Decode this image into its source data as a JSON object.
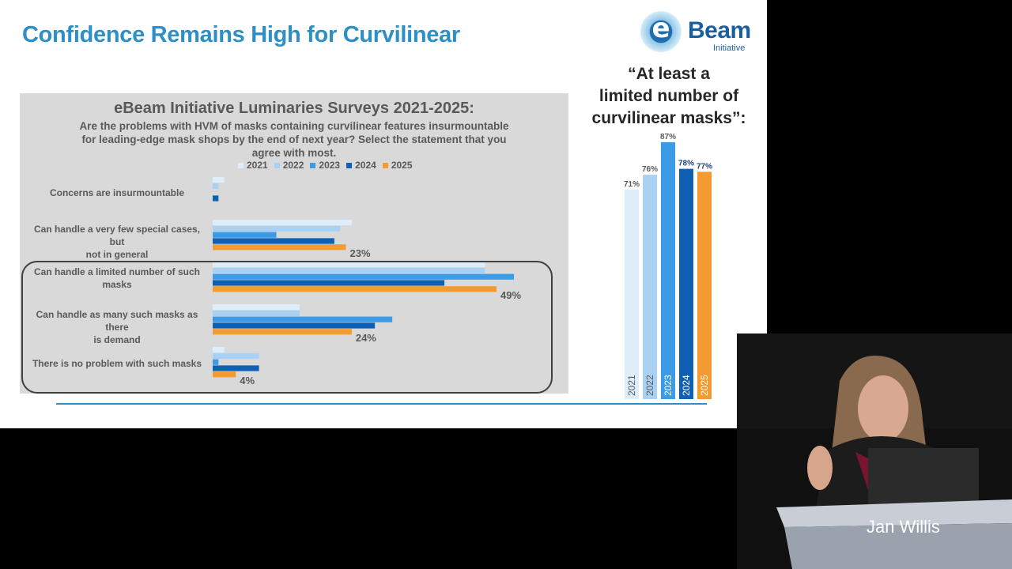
{
  "slide": {
    "title": "Confidence Remains High for Curvilinear",
    "logo": {
      "word": "Beam",
      "mark": "e",
      "sub": "Initiative"
    },
    "quote_lines": [
      "“At least a",
      "limited number of",
      "curvilinear masks”:"
    ]
  },
  "speaker": {
    "name": "Jan Willis"
  },
  "colors": {
    "title": "#2e8fc6",
    "2021": "#ddeefa",
    "2022": "#a9d1f4",
    "2023": "#3c9be6",
    "2024": "#0f5fb5",
    "2025": "#f39a30"
  },
  "chart_data": [
    {
      "type": "bar",
      "orientation": "horizontal",
      "title": "eBeam Initiative Luminaries Surveys 2021-2025:",
      "subtitle": "Are the problems with HVM of masks containing curvilinear features insurmountable for leading-edge mask shops by the end of next year? Select the statement that you agree with most.",
      "categories": [
        "Concerns are insurmountable",
        "Can handle a very few special cases, but not in general",
        "Can handle a limited number of such masks",
        "Can handle as many such masks as there is demand",
        "There is no problem with such masks"
      ],
      "category_lines": [
        [
          "Concerns are insurmountable"
        ],
        [
          "Can handle a very few special cases, but",
          "not in general"
        ],
        [
          "Can handle a limited number of such",
          "masks"
        ],
        [
          "Can handle as many such masks as there",
          "is demand"
        ],
        [
          "There is no problem with such masks"
        ]
      ],
      "series": [
        {
          "name": "2021",
          "values": [
            2,
            24,
            47,
            15,
            2
          ]
        },
        {
          "name": "2022",
          "values": [
            1,
            22,
            47,
            15,
            8
          ]
        },
        {
          "name": "2023",
          "values": [
            0,
            11,
            52,
            31,
            1
          ]
        },
        {
          "name": "2024",
          "values": [
            1,
            21,
            40,
            28,
            8
          ]
        },
        {
          "name": "2025",
          "values": [
            0,
            23,
            49,
            24,
            4
          ]
        }
      ],
      "data_labels": {
        "2025": [
          "",
          "23%",
          "49%",
          "24%",
          "4%"
        ]
      },
      "xlim": [
        0,
        55
      ],
      "legend": "top",
      "grid": false
    },
    {
      "type": "bar",
      "orientation": "vertical",
      "title": "“At least a limited number of curvilinear masks”:",
      "categories": [
        "2021",
        "2022",
        "2023",
        "2024",
        "2025"
      ],
      "values": [
        71,
        76,
        87,
        78,
        77
      ],
      "value_labels": [
        "71%",
        "76%",
        "87%",
        "78%",
        "77%"
      ],
      "ylim": [
        0,
        90
      ],
      "grid": false
    }
  ]
}
